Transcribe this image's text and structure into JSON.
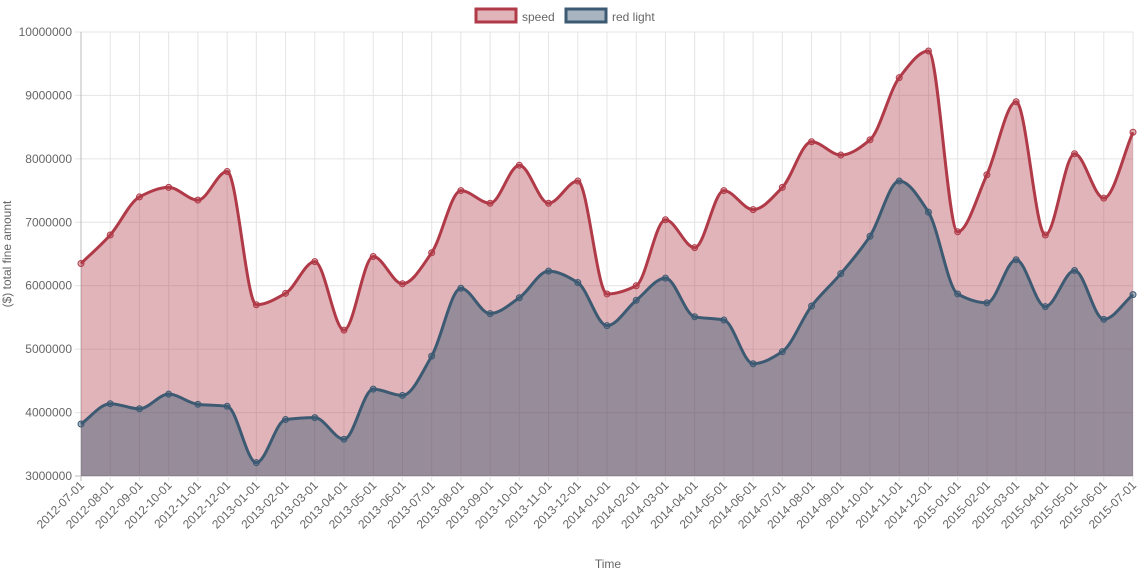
{
  "chart_data": {
    "type": "area",
    "xlabel": "Time",
    "ylabel": "($) total fine amount",
    "ylim": [
      3000000,
      10000000
    ],
    "y_ticks": [
      "10000000",
      "9000000",
      "8000000",
      "7000000",
      "6000000",
      "5000000",
      "4000000",
      "3000000"
    ],
    "y_tick_values": [
      10000000,
      9000000,
      8000000,
      7000000,
      6000000,
      5000000,
      4000000,
      3000000
    ],
    "legend_position": "top-center",
    "grid": true,
    "categories": [
      "2012-07-01",
      "2012-08-01",
      "2012-09-01",
      "2012-10-01",
      "2012-11-01",
      "2012-12-01",
      "2013-01-01",
      "2013-02-01",
      "2013-03-01",
      "2013-04-01",
      "2013-05-01",
      "2013-06-01",
      "2013-07-01",
      "2013-08-01",
      "2013-09-01",
      "2013-10-01",
      "2013-11-01",
      "2013-12-01",
      "2014-01-01",
      "2014-02-01",
      "2014-03-01",
      "2014-04-01",
      "2014-05-01",
      "2014-06-01",
      "2014-07-01",
      "2014-08-01",
      "2014-09-01",
      "2014-10-01",
      "2014-11-01",
      "2014-12-01",
      "2015-01-01",
      "2015-02-01",
      "2015-03-01",
      "2015-04-01",
      "2015-05-01",
      "2015-06-01",
      "2015-07-01"
    ],
    "series": [
      {
        "name": "speed",
        "color": "#b03a48",
        "fill": "rgba(176,58,72,0.38)",
        "values": [
          6350000,
          6800000,
          7400000,
          7550000,
          7350000,
          7800000,
          5700000,
          5880000,
          6380000,
          5300000,
          6460000,
          6030000,
          6520000,
          7500000,
          7300000,
          7900000,
          7300000,
          7650000,
          5870000,
          6000000,
          7040000,
          6600000,
          7500000,
          7200000,
          7550000,
          8270000,
          8060000,
          8300000,
          9280000,
          9700000,
          6850000,
          7750000,
          8900000,
          6800000,
          8080000,
          7380000,
          8420000
        ]
      },
      {
        "name": "red light",
        "color": "#3d5a73",
        "fill": "rgba(61,90,115,0.45)",
        "values": [
          3820000,
          4140000,
          4060000,
          4290000,
          4130000,
          4100000,
          3210000,
          3890000,
          3920000,
          3580000,
          4370000,
          4270000,
          4890000,
          5960000,
          5560000,
          5810000,
          6230000,
          6050000,
          5370000,
          5770000,
          6120000,
          5510000,
          5460000,
          4770000,
          4960000,
          5680000,
          6190000,
          6780000,
          7650000,
          7160000,
          5870000,
          5730000,
          6410000,
          5670000,
          6240000,
          5470000,
          5860000
        ]
      }
    ]
  }
}
